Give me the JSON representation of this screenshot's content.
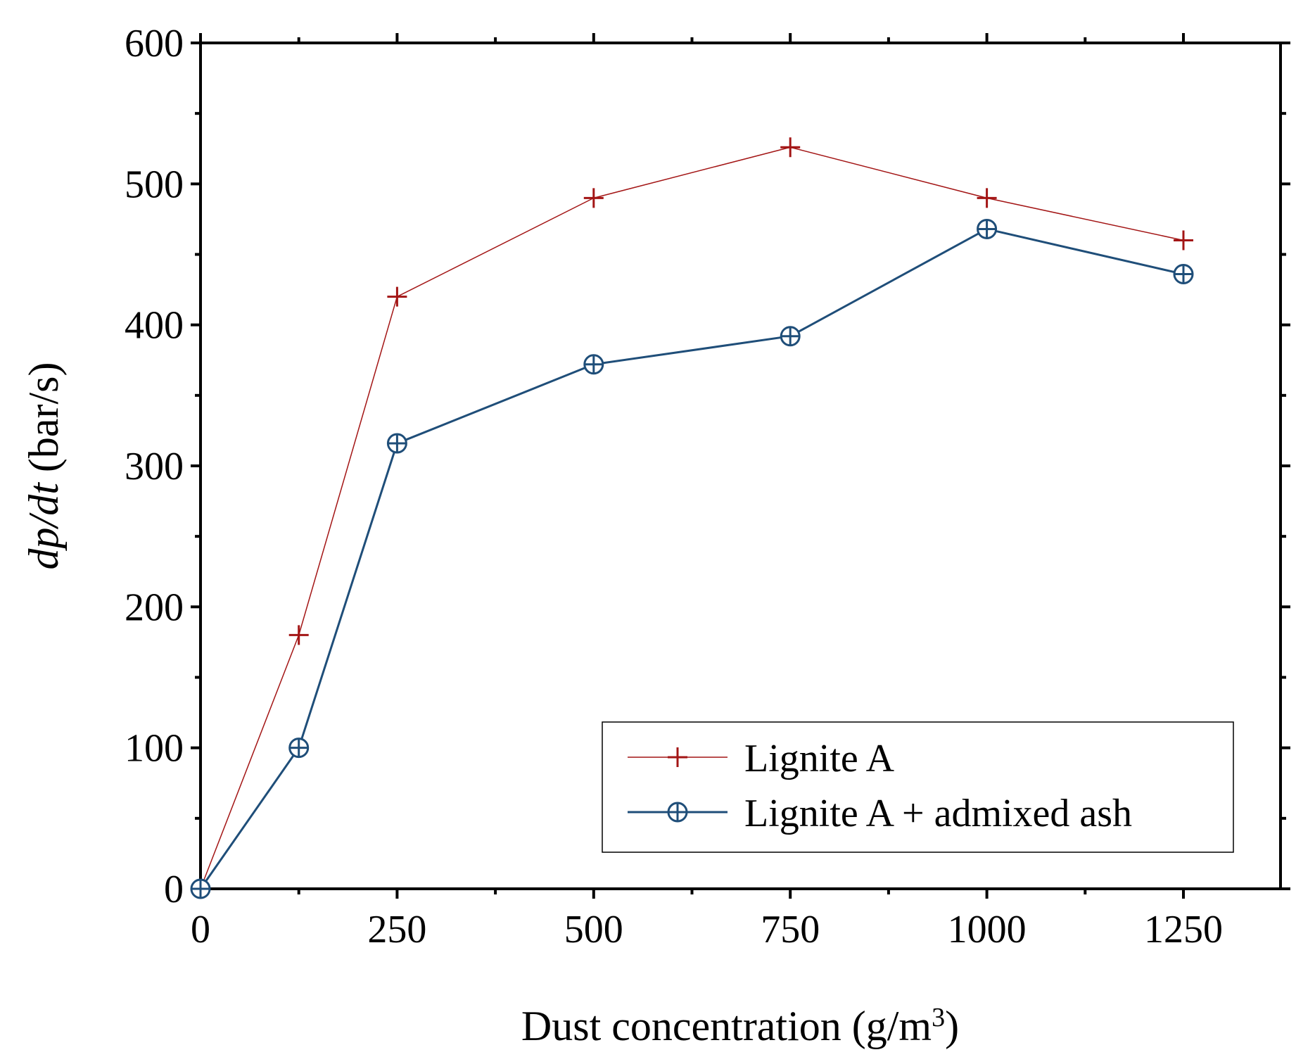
{
  "chart_data": {
    "type": "line",
    "title": "",
    "xlabel": "Dust concentration (g/m³)",
    "xlabel_parts": {
      "main": "Dust concentration (g/m",
      "superscript": "3",
      "suffix": ")"
    },
    "ylabel": "dp/dt (bar/s)",
    "ylabel_parts": {
      "italic": "dp/dt",
      "normal": " (bar/s)"
    },
    "xlim": [
      0,
      1375
    ],
    "ylim": [
      0,
      600
    ],
    "x_ticks": [
      0,
      250,
      500,
      750,
      1000,
      1250
    ],
    "x_tick_labels": [
      "0",
      "250",
      "500",
      "750",
      "1000",
      "1250"
    ],
    "y_ticks": [
      0,
      100,
      200,
      300,
      400,
      500,
      600
    ],
    "y_tick_labels": [
      "0",
      "100",
      "200",
      "300",
      "400",
      "500",
      "600"
    ],
    "x_minor_step": 125,
    "y_minor_step": 50,
    "grid": false,
    "legend_position": "bottom-right",
    "series": [
      {
        "name": "Lignite A",
        "marker": "plus",
        "color": "#A31515",
        "x": [
          0,
          125,
          250,
          500,
          750,
          1000,
          1250
        ],
        "y": [
          0,
          180,
          420,
          490,
          526,
          490,
          460
        ]
      },
      {
        "name": "Lignite A + admixed ash",
        "marker": "circle-plus",
        "color": "#1F4E79",
        "x": [
          0,
          125,
          250,
          500,
          750,
          1000,
          1250
        ],
        "y": [
          0,
          100,
          316,
          372,
          392,
          468,
          436
        ]
      }
    ]
  }
}
